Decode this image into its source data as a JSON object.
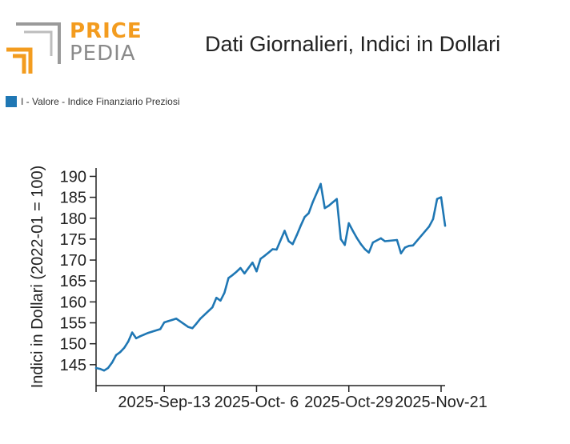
{
  "title": "Dati Giornalieri, Indici in Dollari",
  "logo": {
    "top": "PRICE",
    "bottom": "PEDIA"
  },
  "colors": {
    "series": "#1f77b4",
    "logo_orange": "#f39c1f",
    "logo_gray": "#8a8a8a"
  },
  "chart_data": {
    "type": "line",
    "ylabel": "Indici in Dollari (2022-01 = 100)",
    "ylim": [
      140,
      192
    ],
    "yticks": [
      145,
      150,
      155,
      160,
      165,
      170,
      175,
      180,
      185,
      190
    ],
    "xlim": [
      "2025-08-27",
      "2025-11-22"
    ],
    "xticks": [
      {
        "date": "2025-09-13",
        "label": "2025-Sep-13"
      },
      {
        "date": "2025-10-06",
        "label": "2025-Oct- 6"
      },
      {
        "date": "2025-10-29",
        "label": "2025-Oct-29"
      },
      {
        "date": "2025-11-21",
        "label": "2025-Nov-21"
      }
    ],
    "legend_position": "top-left",
    "grid": false,
    "series": [
      {
        "name": "I - Valore - Indice Finanziario Preziosi",
        "color": "#1f77b4",
        "x": [
          "2025-08-27",
          "2025-08-28",
          "2025-08-29",
          "2025-08-30",
          "2025-08-31",
          "2025-09-01",
          "2025-09-02",
          "2025-09-03",
          "2025-09-04",
          "2025-09-05",
          "2025-09-06",
          "2025-09-07",
          "2025-09-08",
          "2025-09-09",
          "2025-09-10",
          "2025-09-12",
          "2025-09-13",
          "2025-09-14",
          "2025-09-15",
          "2025-09-16",
          "2025-09-19",
          "2025-09-20",
          "2025-09-21",
          "2025-09-22",
          "2025-09-25",
          "2025-09-26",
          "2025-09-27",
          "2025-09-28",
          "2025-09-29",
          "2025-09-30",
          "2025-10-01",
          "2025-10-02",
          "2025-10-03",
          "2025-10-05",
          "2025-10-06",
          "2025-10-07",
          "2025-10-08",
          "2025-10-09",
          "2025-10-10",
          "2025-10-11",
          "2025-10-13",
          "2025-10-14",
          "2025-10-15",
          "2025-10-16",
          "2025-10-17",
          "2025-10-18",
          "2025-10-19",
          "2025-10-20",
          "2025-10-22",
          "2025-10-23",
          "2025-10-24",
          "2025-10-25",
          "2025-10-26",
          "2025-10-27",
          "2025-10-28",
          "2025-10-29",
          "2025-10-30",
          "2025-10-31",
          "2025-11-01",
          "2025-11-02",
          "2025-11-03",
          "2025-11-04",
          "2025-11-06",
          "2025-11-07",
          "2025-11-08",
          "2025-11-10",
          "2025-11-11",
          "2025-11-12",
          "2025-11-13",
          "2025-11-14",
          "2025-11-18",
          "2025-11-19",
          "2025-11-20",
          "2025-11-21",
          "2025-11-22"
        ],
        "values": [
          144.2,
          144.0,
          143.6,
          144.2,
          145.5,
          147.3,
          148.0,
          149.0,
          150.5,
          152.7,
          151.3,
          151.8,
          152.2,
          152.6,
          152.9,
          153.5,
          155.1,
          155.4,
          155.7,
          156.0,
          154.0,
          153.7,
          154.8,
          156.0,
          158.7,
          161.0,
          160.3,
          162.2,
          165.7,
          166.4,
          167.2,
          168.1,
          166.8,
          169.4,
          167.3,
          170.3,
          171.0,
          171.8,
          172.6,
          172.5,
          177.0,
          174.5,
          173.8,
          175.9,
          178.2,
          180.3,
          181.2,
          183.8,
          188.2,
          182.4,
          183.0,
          183.8,
          184.6,
          175.0,
          173.6,
          178.8,
          177.0,
          175.3,
          173.8,
          172.6,
          171.8,
          174.2,
          175.2,
          174.5,
          174.6,
          174.8,
          171.6,
          173.0,
          173.4,
          173.5,
          178.0,
          179.8,
          184.6,
          185.0,
          178.2
        ]
      }
    ]
  }
}
